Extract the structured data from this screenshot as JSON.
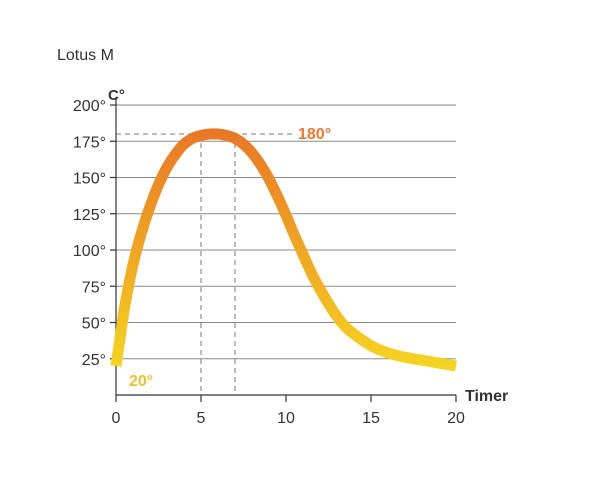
{
  "chart_data": {
    "type": "line",
    "title": "Lotus M",
    "ylabel": "C°",
    "xlabel": "Timer",
    "xlim": [
      0,
      20
    ],
    "ylim": [
      0,
      200
    ],
    "x_ticks": [
      0,
      5,
      10,
      15,
      20
    ],
    "x_tick_labels": [
      "0",
      "5",
      "10",
      "15",
      "20"
    ],
    "y_ticks": [
      25,
      50,
      75,
      100,
      125,
      150,
      175,
      200
    ],
    "y_tick_labels": [
      "25°",
      "50°",
      "75°",
      "100°",
      "125°",
      "150°",
      "175°",
      "200°"
    ],
    "grid": "horizontal",
    "series": [
      {
        "x": [
          0,
          0.25,
          0.5,
          1,
          1.5,
          2,
          2.5,
          3,
          3.5,
          4,
          4.5,
          5,
          5.5,
          6,
          6.5,
          7,
          7.5,
          8,
          8.5,
          9,
          9.5,
          10,
          10.5,
          11,
          11.5,
          12,
          12.5,
          13,
          13.5,
          14,
          15,
          16,
          17,
          18,
          19,
          20
        ],
        "y": [
          20,
          40,
          60,
          90,
          112,
          130,
          145,
          157,
          166,
          173,
          177,
          179,
          180,
          180,
          179,
          177,
          173,
          167,
          159,
          149,
          137,
          124,
          110,
          97,
          84,
          73,
          63,
          54,
          47,
          42,
          34,
          29,
          26,
          24,
          22,
          20
        ]
      }
    ],
    "annotations": [
      {
        "text": "180°",
        "x": 6,
        "y": 180,
        "color": "#e87b32"
      },
      {
        "text": "20°",
        "x": 0,
        "y": 20,
        "color": "#f0bf38"
      }
    ],
    "reference_lines": {
      "horizontal_at_y": 180,
      "vertical_at_x": [
        5,
        7
      ]
    },
    "gradient_colors": [
      "#f5d723",
      "#e87828"
    ]
  }
}
